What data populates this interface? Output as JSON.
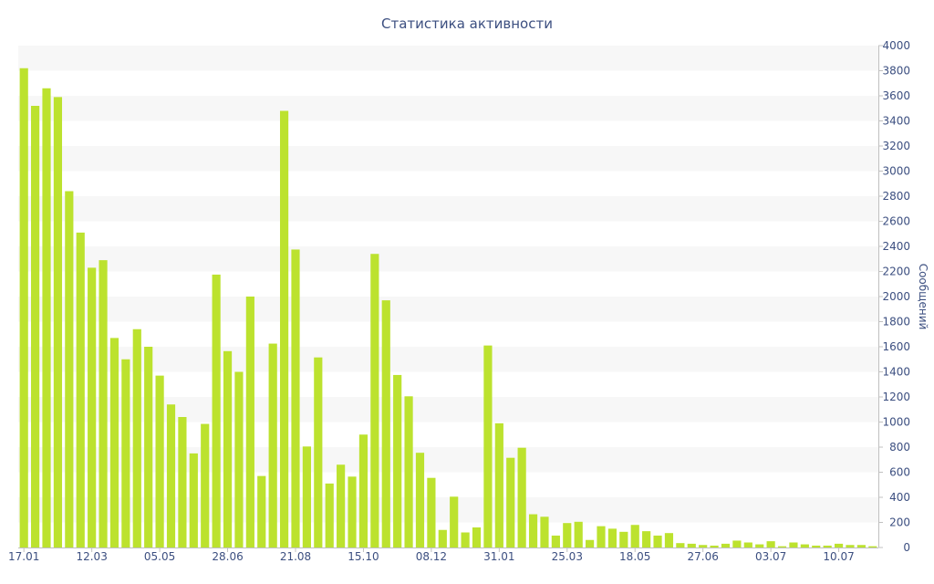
{
  "chart_data": {
    "type": "bar",
    "title": "Статистика активности",
    "xlabel": "",
    "ylabel": "Сообщений",
    "y_axis_side": "right",
    "ylim": [
      0,
      4000
    ],
    "y_ticks": [
      0,
      200,
      400,
      600,
      800,
      1000,
      1200,
      1400,
      1600,
      1800,
      2000,
      2200,
      2400,
      2600,
      2800,
      3000,
      3200,
      3400,
      3600,
      3800,
      4000
    ],
    "x_tick_labels": [
      {
        "label": "17.01",
        "bar_index": 0
      },
      {
        "label": "12.03",
        "bar_index": 6
      },
      {
        "label": "05.05",
        "bar_index": 12
      },
      {
        "label": "28.06",
        "bar_index": 18
      },
      {
        "label": "21.08",
        "bar_index": 24
      },
      {
        "label": "15.10",
        "bar_index": 30
      },
      {
        "label": "08.12",
        "bar_index": 36
      },
      {
        "label": "31.01",
        "bar_index": 42
      },
      {
        "label": "25.03",
        "bar_index": 48
      },
      {
        "label": "18.05",
        "bar_index": 54
      },
      {
        "label": "27.06",
        "bar_index": 60
      },
      {
        "label": "03.07",
        "bar_index": 66
      },
      {
        "label": "10.07",
        "bar_index": 72
      }
    ],
    "grid": "alternating-bands",
    "colors": {
      "bar": "#bce22e",
      "band": "#f7f7f7",
      "text": "#3c4f80",
      "axis": "#c0c0c0"
    },
    "values": [
      3820,
      3520,
      3660,
      3590,
      2840,
      2510,
      2230,
      2290,
      1670,
      1500,
      1740,
      1600,
      1370,
      1140,
      1040,
      750,
      985,
      2175,
      1565,
      1400,
      2000,
      570,
      1625,
      3480,
      2375,
      805,
      1515,
      510,
      660,
      565,
      900,
      2340,
      1970,
      1375,
      1205,
      755,
      555,
      140,
      405,
      120,
      160,
      1610,
      990,
      715,
      795,
      265,
      245,
      95,
      195,
      205,
      60,
      170,
      150,
      125,
      180,
      130,
      95,
      115,
      35,
      30,
      20,
      15,
      30,
      55,
      40,
      25,
      50,
      10,
      40,
      25,
      15,
      15,
      30,
      20,
      20,
      10
    ]
  }
}
